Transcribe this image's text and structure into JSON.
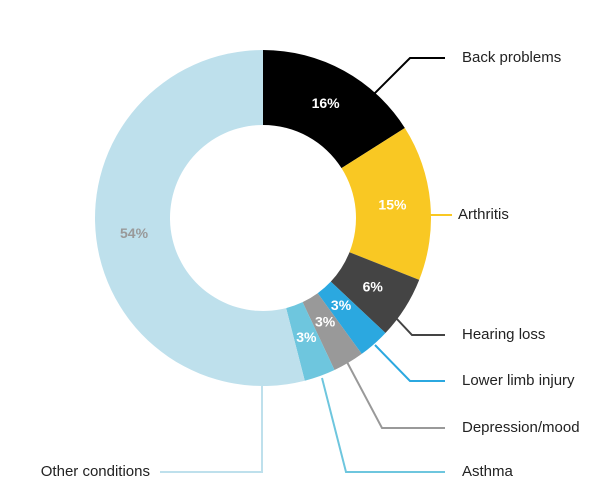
{
  "chart_data": {
    "type": "donut",
    "categories": [
      "Back problems",
      "Arthritis",
      "Hearing loss",
      "Lower limb injury",
      "Depression/mood",
      "Asthma",
      "Other conditions"
    ],
    "values": [
      16,
      15,
      6,
      3,
      3,
      3,
      54
    ],
    "value_labels": [
      "16%",
      "15%",
      "6%",
      "3%",
      "3%",
      "3%",
      "54%"
    ],
    "colors": [
      "#000000",
      "#f9c823",
      "#444444",
      "#2ba8e0",
      "#999999",
      "#6ec6de",
      "#bee0ec"
    ],
    "label_colors": [
      "#ffffff",
      "#ffffff",
      "#ffffff",
      "#ffffff",
      "#ffffff",
      "#ffffff",
      "#999999"
    ]
  }
}
